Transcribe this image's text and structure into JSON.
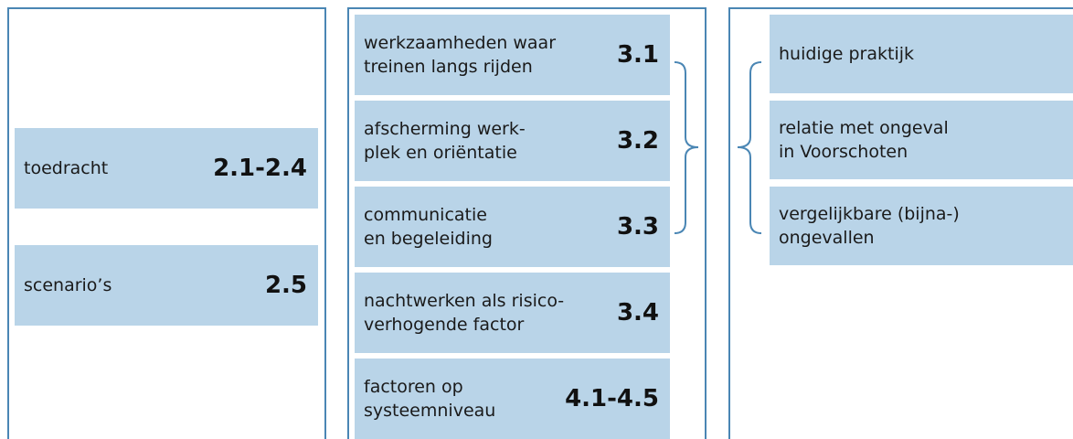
{
  "columns": [
    {
      "boxes": [
        {
          "lines": [
            "toedracht"
          ],
          "code": "2.1-2.4"
        },
        {
          "lines": [
            "scenario’s"
          ],
          "code": "2.5"
        }
      ]
    },
    {
      "boxes": [
        {
          "lines": [
            "werkzaamheden waar",
            "treinen langs rijden"
          ],
          "code": "3.1"
        },
        {
          "lines": [
            "afscherming werk-",
            "plek en oriëntatie"
          ],
          "code": "3.2"
        },
        {
          "lines": [
            "communicatie",
            "en begeleiding"
          ],
          "code": "3.3"
        },
        {
          "lines": [
            "nachtwerken als risico-",
            "verhogende factor"
          ],
          "code": "3.4"
        },
        {
          "lines": [
            "factoren op",
            "systeemniveau"
          ],
          "code": "4.1-4.5"
        }
      ]
    },
    {
      "boxes": [
        {
          "lines": [
            "huidige praktijk"
          ]
        },
        {
          "lines": [
            "relatie met ongeval",
            "in Voorschoten"
          ]
        },
        {
          "lines": [
            "vergelijkbare (bijna-)",
            "ongevallen"
          ]
        }
      ]
    }
  ]
}
